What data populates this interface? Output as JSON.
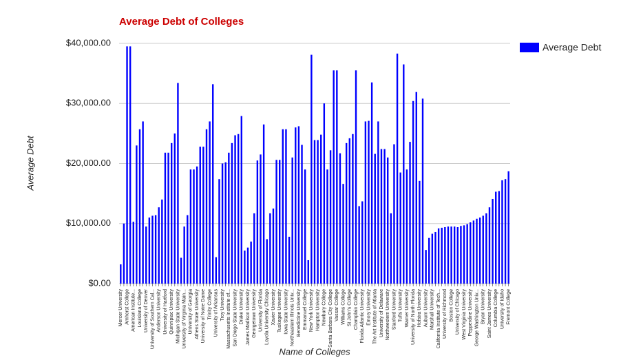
{
  "chart_data": {
    "type": "bar",
    "title": "Average Debt of Colleges",
    "x_label": "Name of Colleges",
    "y_label": "Average Debt",
    "legend_position": "right",
    "grid": true,
    "series": [
      {
        "name": "Average Debt",
        "color": "#0000ff",
        "values": [
          3200,
          10000,
          39500,
          39500,
          10300,
          23000,
          25700,
          27000,
          9500,
          11000,
          11300,
          11400,
          12700,
          14000,
          21800,
          21800,
          23400,
          25000,
          33400,
          4300,
          9500,
          11400,
          19000,
          19000,
          19500,
          22800,
          22800,
          25700,
          27000,
          33200,
          4400,
          17400,
          20000,
          20200,
          21800,
          23400,
          24700,
          24900,
          27900,
          5500,
          6000,
          7000,
          11700,
          20500,
          21500,
          26500,
          7400,
          11700,
          12500,
          20600,
          20600,
          25700,
          25700,
          7800,
          21000,
          26000,
          26200,
          23100,
          19000,
          3900,
          38100,
          23900,
          23900,
          24800,
          30000,
          19000,
          22200,
          35500,
          35500,
          21700,
          16600,
          23400,
          24200,
          24900,
          35500,
          12900,
          13700,
          27000,
          27100,
          33500,
          21600,
          27000,
          22400,
          22400,
          21000,
          11700,
          23200,
          38300,
          18500,
          36500,
          19000,
          23600,
          30400,
          31900,
          17100,
          30800,
          5600,
          7600,
          8300,
          8600,
          9200,
          9300,
          9400,
          9500,
          9500,
          9500,
          9400,
          9600,
          9700,
          9900,
          10200,
          10500,
          10800,
          11000,
          11300,
          11700,
          12700,
          14100,
          15300,
          15400,
          17200,
          17400,
          18700
        ]
      }
    ],
    "categories": [
      "Mercer University",
      null,
      "Amherst College",
      null,
      "American Institute...",
      null,
      "Louisiana College",
      null,
      "University of Denver",
      null,
      "University of Southern Cal...",
      null,
      "Anderson University",
      null,
      "University of Hartford",
      null,
      "Quinnipiac University",
      null,
      "Michigan State University",
      null,
      "University of Virginia Main...",
      null,
      "University of Georgia",
      null,
      "Athens State University",
      null,
      "University of Notre Dame",
      null,
      "Trinity College",
      null,
      "University of Arkansas",
      null,
      "Troy University",
      null,
      "Massachusetts Institute of...",
      null,
      "San Diego State University",
      null,
      "Drake University",
      null,
      "James Madison University",
      null,
      "Georgetown University",
      null,
      "University of Florida",
      null,
      "Loyola University Chicago",
      null,
      "Xavier University",
      null,
      "Tuskegee University",
      null,
      "Iowa State University",
      null,
      "Northeastern Illinois Univ...",
      null,
      "Benedictine University",
      null,
      "Emmanuel College",
      null,
      "New York University",
      null,
      "Hampton University",
      null,
      "Newbury College",
      null,
      "Santa Barbara City College",
      null,
      "Vassar College",
      null,
      "Williams College",
      null,
      "St John's College",
      null,
      "Champlain College",
      null,
      "Florida Atlantic University",
      null,
      "Emory University",
      null,
      "The Art Institute of Atlanta",
      null,
      "University of Delaware",
      null,
      "Northwestern University",
      null,
      "Stanford University",
      null,
      "Tufts University",
      null,
      "Warner University",
      null,
      "University of North Florida",
      null,
      "Hofstra University",
      null,
      "Auburn University",
      null,
      "Marshall University",
      null,
      "California Institute of Tech...",
      null,
      "University of Richmond",
      null,
      "Boston College",
      null,
      "University of Chicago",
      null,
      "West Virginia University",
      null,
      "Pepperdine University",
      null,
      "George Washington Univ...",
      null,
      "Bryan University",
      null,
      "Saint James University",
      null,
      "Columbia College",
      null,
      "University of Idaho",
      null,
      "Fremont College"
    ],
    "ylim": [
      0,
      40000
    ],
    "yticks": [
      {
        "value": 0,
        "label": "$0.00"
      },
      {
        "value": 10000,
        "label": "$10,000.00"
      },
      {
        "value": 20000,
        "label": "$20,000.00"
      },
      {
        "value": 30000,
        "label": "$30,000.00"
      },
      {
        "value": 40000,
        "label": "$40,000.00"
      }
    ]
  }
}
